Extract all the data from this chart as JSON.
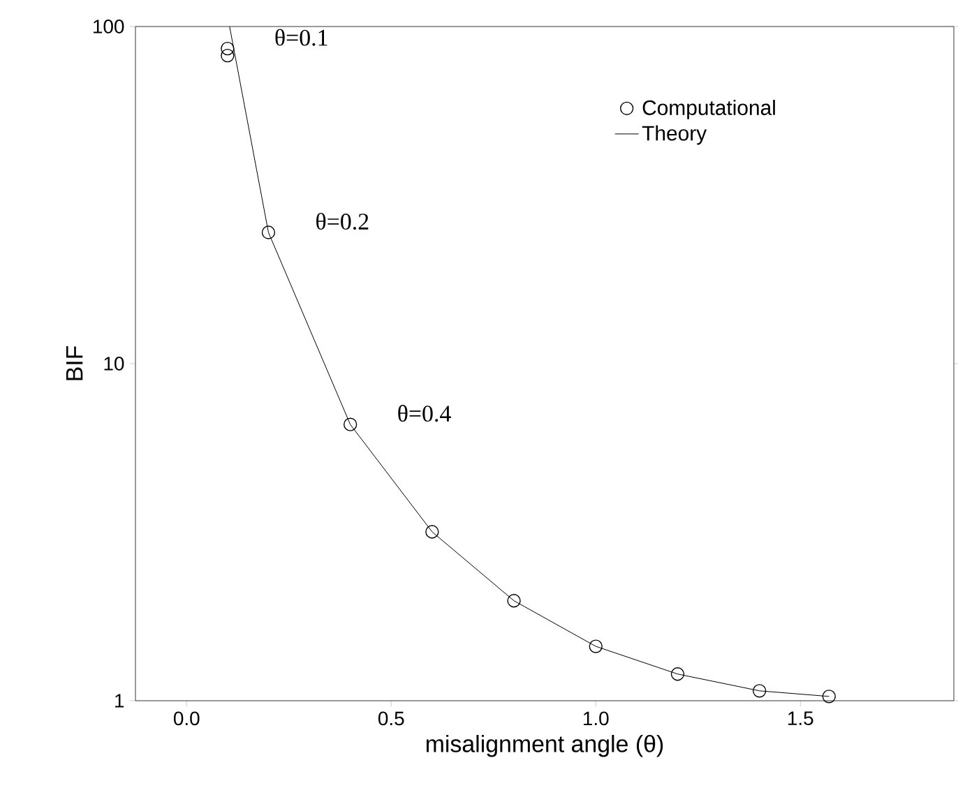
{
  "chart_data": {
    "type": "scatter",
    "xlabel": "misalignment angle (θ)",
    "ylabel": "BIF",
    "log": "y",
    "xlim": [
      -0.125,
      1.875
    ],
    "ylim": [
      1,
      100
    ],
    "xticks": [
      {
        "value": 0,
        "label": "0.0"
      },
      0.5,
      {
        "value": 1,
        "label": "1.0"
      },
      1.5
    ],
    "yticks": [
      1,
      10,
      100
    ],
    "series": [
      {
        "name": "Computational",
        "type": "scatter",
        "marker": "circle",
        "color": "#000000",
        "x": [
          0.1,
          0.1,
          0.2,
          0.4,
          0.6,
          0.8,
          1.0,
          1.2,
          1.4,
          1.57
        ],
        "values": [
          86,
          82,
          24.5,
          6.6,
          3.17,
          1.98,
          1.45,
          1.2,
          1.07,
          1.03
        ]
      },
      {
        "name": "Theory",
        "type": "line",
        "marker": "none",
        "line_style": "solid",
        "color": "#000000",
        "x": [
          0.105,
          0.2,
          0.4,
          0.6,
          0.8,
          1.0,
          1.2,
          1.4,
          1.57
        ],
        "values": [
          100,
          24.5,
          6.6,
          3.17,
          1.98,
          1.45,
          1.2,
          1.07,
          1.03
        ]
      }
    ],
    "annotations": [
      {
        "text": "θ=0.1",
        "x": 0.1,
        "y": 86
      },
      {
        "text": "θ=0.2",
        "x": 0.2,
        "y": 24.5
      },
      {
        "text": "θ=0.4",
        "x": 0.4,
        "y": 6.6
      }
    ],
    "legend": "top right",
    "grid": false
  }
}
